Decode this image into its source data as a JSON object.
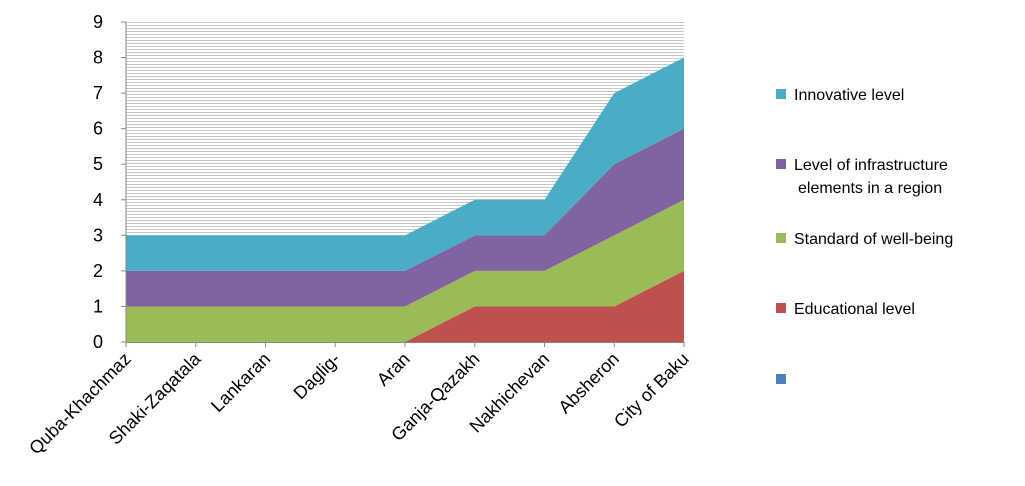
{
  "chart_data": {
    "type": "area",
    "stacked": true,
    "categories": [
      "Quba-Khachmaz",
      "Shaki-Zaqatala",
      "Lankaran",
      "Daglig-",
      "Aran",
      "Ganja-Qazakh",
      "Nakhichevan",
      "Absheron",
      "City of Baku"
    ],
    "series": [
      {
        "name": "",
        "values": [
          0,
          0,
          0,
          0,
          0,
          0,
          0,
          0,
          0
        ],
        "color": "#4F81BD"
      },
      {
        "name": "Educational level",
        "values": [
          0,
          0,
          0,
          0,
          0,
          1,
          1,
          1,
          2
        ],
        "color": "#C0504D"
      },
      {
        "name": "Standard of well-being",
        "values": [
          1,
          1,
          1,
          1,
          1,
          1,
          1,
          2,
          2
        ],
        "color": "#9BBB59"
      },
      {
        "name": "Level of infrastructure elements in a region",
        "values": [
          1,
          1,
          1,
          1,
          1,
          1,
          1,
          2,
          2
        ],
        "color": "#8064A2"
      },
      {
        "name": "Innovative level",
        "values": [
          1,
          1,
          1,
          1,
          1,
          1,
          1,
          2,
          2
        ],
        "color": "#4BACC6"
      }
    ],
    "yticks": [
      "0",
      "1",
      "2",
      "3",
      "4",
      "5",
      "6",
      "7",
      "8",
      "9"
    ],
    "ylim": [
      0,
      9
    ],
    "grid": true,
    "legend_position": "right",
    "title": "",
    "xlabel": "",
    "ylabel": ""
  },
  "legend": {
    "innovative": "Innovative level",
    "infrastructure_line1": "Level of infrastructure",
    "infrastructure_line2": "elements in a region",
    "wellbeing": "Standard of well-being",
    "educational": "Educational level",
    "blank": ""
  }
}
